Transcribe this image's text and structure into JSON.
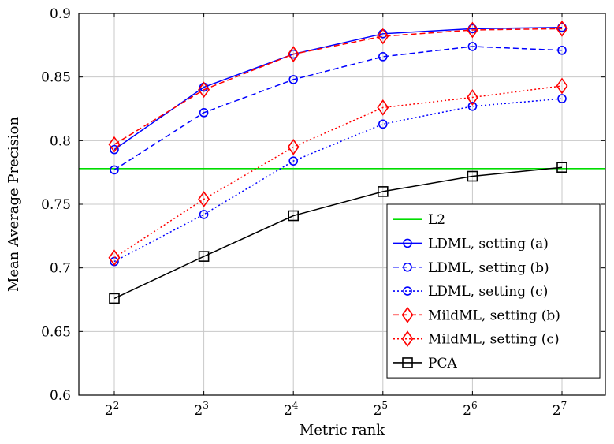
{
  "chart_data": {
    "type": "line",
    "xlabel": "Metric rank",
    "ylabel": "Mean Average Precision",
    "x": [
      4,
      8,
      16,
      32,
      64,
      128
    ],
    "xscale": "log2",
    "xticks": [
      {
        "base": "2",
        "exp": "2"
      },
      {
        "base": "2",
        "exp": "3"
      },
      {
        "base": "2",
        "exp": "4"
      },
      {
        "base": "2",
        "exp": "5"
      },
      {
        "base": "2",
        "exp": "6"
      },
      {
        "base": "2",
        "exp": "7"
      }
    ],
    "ylim": [
      0.6,
      0.9
    ],
    "yticks": [
      "0.6",
      "0.65",
      "0.7",
      "0.75",
      "0.8",
      "0.85",
      "0.9"
    ],
    "grid": true,
    "legend_position": "bottom-right",
    "hlines": [
      {
        "name": "L2",
        "value": 0.778,
        "color": "#00dd00"
      }
    ],
    "series": [
      {
        "name": "LDML, setting (a)",
        "color": "#0000ff",
        "marker": "circle",
        "dash": "solid",
        "values": [
          0.793,
          0.842,
          0.868,
          0.884,
          0.888,
          0.889
        ]
      },
      {
        "name": "LDML, setting (b)",
        "color": "#0000ff",
        "marker": "circle",
        "dash": "dashed",
        "values": [
          0.777,
          0.822,
          0.848,
          0.866,
          0.874,
          0.871
        ]
      },
      {
        "name": "LDML, setting (c)",
        "color": "#0000ff",
        "marker": "circle",
        "dash": "dotted",
        "values": [
          0.705,
          0.742,
          0.784,
          0.813,
          0.827,
          0.833
        ]
      },
      {
        "name": "MildML, setting (b)",
        "color": "#ff0000",
        "marker": "diamond",
        "dash": "dashed",
        "values": [
          0.797,
          0.84,
          0.868,
          0.882,
          0.887,
          0.888
        ]
      },
      {
        "name": "MildML, setting (c)",
        "color": "#ff0000",
        "marker": "diamond",
        "dash": "dotted",
        "values": [
          0.708,
          0.754,
          0.795,
          0.826,
          0.834,
          0.843
        ]
      },
      {
        "name": "PCA",
        "color": "#000000",
        "marker": "square",
        "dash": "solid",
        "values": [
          0.676,
          0.709,
          0.741,
          0.76,
          0.772,
          0.779
        ]
      }
    ]
  }
}
